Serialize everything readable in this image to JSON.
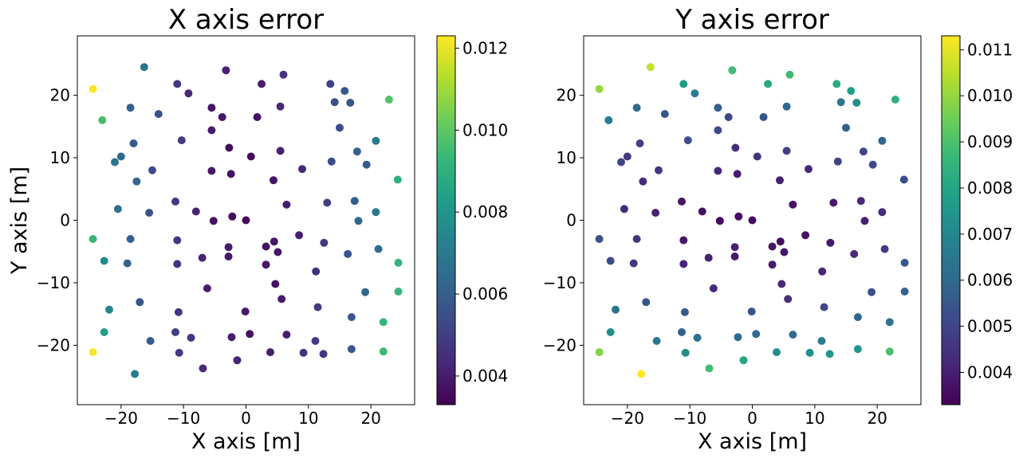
{
  "colorscale": {
    "name": "viridis",
    "stops": [
      "#440154",
      "#482878",
      "#3e4989",
      "#31688e",
      "#26828e",
      "#1f9e89",
      "#35b779",
      "#6ece58",
      "#b5de2b",
      "#fde725"
    ]
  },
  "chart_data": [
    {
      "type": "scatter",
      "title": "X axis error",
      "xlabel": "X axis [m]",
      "ylabel": "Y axis [m]",
      "xlim": [
        -27,
        27
      ],
      "ylim": [
        -29.5,
        29.5
      ],
      "xticks": [
        -20,
        -10,
        0,
        10,
        20
      ],
      "yticks": [
        -20,
        -10,
        0,
        10,
        20
      ],
      "xtick_labels": [
        "−20",
        "−10",
        "0",
        "10",
        "20"
      ],
      "ytick_labels": [
        "−20",
        "−10",
        "0",
        "10",
        "20"
      ],
      "colorbar": {
        "range": [
          0.0033,
          0.0123
        ],
        "ticks": [
          0.004,
          0.006,
          0.008,
          0.01,
          0.012
        ],
        "tick_labels": [
          "0.004",
          "0.006",
          "0.008",
          "0.010",
          "0.012"
        ]
      },
      "points": [
        {
          "x": -24.5,
          "y": 21.0,
          "c": 0.0123
        },
        {
          "x": -23.0,
          "y": 16.0,
          "c": 0.0096
        },
        {
          "x": -16.3,
          "y": 24.5,
          "c": 0.0068
        },
        {
          "x": -18.5,
          "y": 18.0,
          "c": 0.0061
        },
        {
          "x": -14.0,
          "y": 17.0,
          "c": 0.0056
        },
        {
          "x": -11.0,
          "y": 21.8,
          "c": 0.0048
        },
        {
          "x": -9.2,
          "y": 20.3,
          "c": 0.0043
        },
        {
          "x": -3.2,
          "y": 24.0,
          "c": 0.0041
        },
        {
          "x": 2.5,
          "y": 21.8,
          "c": 0.004
        },
        {
          "x": 6.0,
          "y": 23.3,
          "c": 0.0046
        },
        {
          "x": 13.5,
          "y": 21.8,
          "c": 0.005
        },
        {
          "x": 15.8,
          "y": 20.7,
          "c": 0.0058
        },
        {
          "x": 22.9,
          "y": 19.3,
          "c": 0.0098
        },
        {
          "x": 14.2,
          "y": 18.9,
          "c": 0.0055
        },
        {
          "x": 16.7,
          "y": 18.8,
          "c": 0.0057
        },
        {
          "x": 5.5,
          "y": 18.2,
          "c": 0.0043
        },
        {
          "x": -5.5,
          "y": 18.0,
          "c": 0.0038
        },
        {
          "x": -3.8,
          "y": 16.5,
          "c": 0.0038
        },
        {
          "x": 1.8,
          "y": 16.5,
          "c": 0.0037
        },
        {
          "x": -5.5,
          "y": 14.4,
          "c": 0.004
        },
        {
          "x": 15.0,
          "y": 14.8,
          "c": 0.0054
        },
        {
          "x": -18.0,
          "y": 12.3,
          "c": 0.0058
        },
        {
          "x": -10.3,
          "y": 12.8,
          "c": 0.0048
        },
        {
          "x": 20.8,
          "y": 12.7,
          "c": 0.007
        },
        {
          "x": -20.0,
          "y": 10.2,
          "c": 0.0063
        },
        {
          "x": -2.7,
          "y": 11.6,
          "c": 0.0036
        },
        {
          "x": 0.8,
          "y": 10.2,
          "c": 0.0036
        },
        {
          "x": 5.5,
          "y": 11.1,
          "c": 0.0041
        },
        {
          "x": 17.8,
          "y": 11.0,
          "c": 0.006
        },
        {
          "x": -21.0,
          "y": 9.3,
          "c": 0.0068
        },
        {
          "x": 13.7,
          "y": 9.4,
          "c": 0.0054
        },
        {
          "x": 19.3,
          "y": 8.9,
          "c": 0.0059
        },
        {
          "x": -15.0,
          "y": 8.0,
          "c": 0.0054
        },
        {
          "x": -5.5,
          "y": 7.9,
          "c": 0.0039
        },
        {
          "x": -2.4,
          "y": 7.4,
          "c": 0.0037
        },
        {
          "x": 9.0,
          "y": 8.2,
          "c": 0.0043
        },
        {
          "x": 4.4,
          "y": 6.4,
          "c": 0.0038
        },
        {
          "x": -17.5,
          "y": 6.2,
          "c": 0.0063
        },
        {
          "x": 24.3,
          "y": 6.5,
          "c": 0.009
        },
        {
          "x": -11.3,
          "y": 3.0,
          "c": 0.0048
        },
        {
          "x": 17.4,
          "y": 3.1,
          "c": 0.0059
        },
        {
          "x": 6.5,
          "y": 2.5,
          "c": 0.004
        },
        {
          "x": 13.0,
          "y": 2.8,
          "c": 0.005
        },
        {
          "x": -20.5,
          "y": 1.8,
          "c": 0.0066
        },
        {
          "x": -15.5,
          "y": 1.2,
          "c": 0.0056
        },
        {
          "x": -8.0,
          "y": 1.4,
          "c": 0.0042
        },
        {
          "x": 20.8,
          "y": 1.3,
          "c": 0.0069
        },
        {
          "x": -5.2,
          "y": -0.1,
          "c": 0.0037
        },
        {
          "x": -2.2,
          "y": 0.6,
          "c": 0.0035
        },
        {
          "x": 0.0,
          "y": 0.0,
          "c": 0.0035
        },
        {
          "x": 18.0,
          "y": -0.1,
          "c": 0.0063
        },
        {
          "x": -24.5,
          "y": -3.0,
          "c": 0.0093
        },
        {
          "x": -18.5,
          "y": -3.0,
          "c": 0.006
        },
        {
          "x": -11.0,
          "y": -3.2,
          "c": 0.0047
        },
        {
          "x": 4.5,
          "y": -3.4,
          "c": 0.0038
        },
        {
          "x": 8.5,
          "y": -2.4,
          "c": 0.0041
        },
        {
          "x": 12.5,
          "y": -3.6,
          "c": 0.0048
        },
        {
          "x": -2.8,
          "y": -4.3,
          "c": 0.004
        },
        {
          "x": 3.2,
          "y": -4.2,
          "c": 0.0037
        },
        {
          "x": 5.1,
          "y": -5.1,
          "c": 0.0039
        },
        {
          "x": 21.2,
          "y": -4.6,
          "c": 0.0065
        },
        {
          "x": -2.8,
          "y": -5.8,
          "c": 0.0039
        },
        {
          "x": -7.0,
          "y": -6.0,
          "c": 0.0042
        },
        {
          "x": 16.3,
          "y": -5.4,
          "c": 0.0056
        },
        {
          "x": -22.7,
          "y": -6.5,
          "c": 0.0076
        },
        {
          "x": -19.0,
          "y": -6.9,
          "c": 0.0062
        },
        {
          "x": -11.0,
          "y": -7.0,
          "c": 0.0047
        },
        {
          "x": 3.2,
          "y": -7.1,
          "c": 0.0038
        },
        {
          "x": 24.4,
          "y": -6.8,
          "c": 0.0092
        },
        {
          "x": 11.2,
          "y": -8.2,
          "c": 0.0046
        },
        {
          "x": 4.7,
          "y": -10.2,
          "c": 0.0037
        },
        {
          "x": -6.2,
          "y": -10.9,
          "c": 0.004
        },
        {
          "x": 19.1,
          "y": -11.5,
          "c": 0.0063
        },
        {
          "x": 24.4,
          "y": -11.4,
          "c": 0.0092
        },
        {
          "x": -17.0,
          "y": -13.1,
          "c": 0.0057
        },
        {
          "x": 5.7,
          "y": -12.6,
          "c": 0.004
        },
        {
          "x": 11.5,
          "y": -13.9,
          "c": 0.0049
        },
        {
          "x": -21.9,
          "y": -14.3,
          "c": 0.0074
        },
        {
          "x": -10.8,
          "y": -14.7,
          "c": 0.0047
        },
        {
          "x": -0.1,
          "y": -14.6,
          "c": 0.0039
        },
        {
          "x": 16.9,
          "y": -15.5,
          "c": 0.0058
        },
        {
          "x": 22.0,
          "y": -16.3,
          "c": 0.0092
        },
        {
          "x": -22.7,
          "y": -17.9,
          "c": 0.0083
        },
        {
          "x": -11.3,
          "y": -17.9,
          "c": 0.005
        },
        {
          "x": 0.6,
          "y": -18.2,
          "c": 0.0037
        },
        {
          "x": 6.5,
          "y": -18.3,
          "c": 0.004
        },
        {
          "x": -15.3,
          "y": -19.3,
          "c": 0.0059
        },
        {
          "x": -8.8,
          "y": -18.8,
          "c": 0.0047
        },
        {
          "x": -2.3,
          "y": -18.7,
          "c": 0.004
        },
        {
          "x": 11.1,
          "y": -19.3,
          "c": 0.0048
        },
        {
          "x": -24.5,
          "y": -21.1,
          "c": 0.0122
        },
        {
          "x": -10.7,
          "y": -21.2,
          "c": 0.0049
        },
        {
          "x": 3.9,
          "y": -21.1,
          "c": 0.0041
        },
        {
          "x": 9.2,
          "y": -21.2,
          "c": 0.0046
        },
        {
          "x": 12.4,
          "y": -21.4,
          "c": 0.0047
        },
        {
          "x": 16.9,
          "y": -20.6,
          "c": 0.0058
        },
        {
          "x": 22.0,
          "y": -21.0,
          "c": 0.0094
        },
        {
          "x": -1.4,
          "y": -22.4,
          "c": 0.0042
        },
        {
          "x": -6.9,
          "y": -23.7,
          "c": 0.0044
        },
        {
          "x": -17.8,
          "y": -24.6,
          "c": 0.007
        }
      ]
    },
    {
      "type": "scatter",
      "title": "Y axis error",
      "xlabel": "X axis [m]",
      "ylabel": "",
      "xlim": [
        -27,
        27
      ],
      "ylim": [
        -29.5,
        29.5
      ],
      "xticks": [
        -20,
        -10,
        0,
        10,
        20
      ],
      "yticks": [
        -20,
        -10,
        0,
        10,
        20
      ],
      "xtick_labels": [
        "−20",
        "−10",
        "0",
        "10",
        "20"
      ],
      "ytick_labels": [
        "−20",
        "−10",
        "0",
        "10",
        "20"
      ],
      "colorbar": {
        "range": [
          0.0033,
          0.0113
        ],
        "ticks": [
          0.004,
          0.005,
          0.006,
          0.007,
          0.008,
          0.009,
          0.01,
          0.011
        ],
        "tick_labels": [
          "0.004",
          "0.005",
          "0.006",
          "0.007",
          "0.008",
          "0.009",
          "0.010",
          "0.011"
        ]
      },
      "points": [
        {
          "x": -24.5,
          "y": 21.0,
          "c": 0.01
        },
        {
          "x": -23.0,
          "y": 16.0,
          "c": 0.0066
        },
        {
          "x": -16.3,
          "y": 24.5,
          "c": 0.0106
        },
        {
          "x": -18.5,
          "y": 18.0,
          "c": 0.006
        },
        {
          "x": -14.0,
          "y": 17.0,
          "c": 0.0054
        },
        {
          "x": -11.0,
          "y": 21.8,
          "c": 0.0077
        },
        {
          "x": -9.2,
          "y": 20.3,
          "c": 0.0068
        },
        {
          "x": -3.2,
          "y": 24.0,
          "c": 0.0088
        },
        {
          "x": 2.5,
          "y": 21.8,
          "c": 0.0081
        },
        {
          "x": 6.0,
          "y": 23.3,
          "c": 0.0088
        },
        {
          "x": 13.5,
          "y": 21.8,
          "c": 0.0082
        },
        {
          "x": 15.8,
          "y": 20.7,
          "c": 0.0078
        },
        {
          "x": 22.9,
          "y": 19.3,
          "c": 0.0084
        },
        {
          "x": 14.2,
          "y": 18.9,
          "c": 0.0064
        },
        {
          "x": 16.7,
          "y": 18.8,
          "c": 0.0072
        },
        {
          "x": 5.5,
          "y": 18.2,
          "c": 0.006
        },
        {
          "x": -5.5,
          "y": 18.0,
          "c": 0.0057
        },
        {
          "x": -3.8,
          "y": 16.5,
          "c": 0.005
        },
        {
          "x": 1.8,
          "y": 16.5,
          "c": 0.0054
        },
        {
          "x": -5.5,
          "y": 14.4,
          "c": 0.0051
        },
        {
          "x": 15.0,
          "y": 14.8,
          "c": 0.0057
        },
        {
          "x": -18.0,
          "y": 12.3,
          "c": 0.0048
        },
        {
          "x": -10.3,
          "y": 12.8,
          "c": 0.0052
        },
        {
          "x": 20.8,
          "y": 12.7,
          "c": 0.0059
        },
        {
          "x": -20.0,
          "y": 10.2,
          "c": 0.0046
        },
        {
          "x": -2.7,
          "y": 11.6,
          "c": 0.0044
        },
        {
          "x": 0.8,
          "y": 10.2,
          "c": 0.0045
        },
        {
          "x": 5.5,
          "y": 11.1,
          "c": 0.0048
        },
        {
          "x": 17.8,
          "y": 11.0,
          "c": 0.005
        },
        {
          "x": -21.0,
          "y": 9.3,
          "c": 0.005
        },
        {
          "x": 13.7,
          "y": 9.4,
          "c": 0.0049
        },
        {
          "x": 19.3,
          "y": 8.9,
          "c": 0.0051
        },
        {
          "x": -15.0,
          "y": 8.0,
          "c": 0.0046
        },
        {
          "x": -5.5,
          "y": 7.9,
          "c": 0.0042
        },
        {
          "x": -2.4,
          "y": 7.4,
          "c": 0.004
        },
        {
          "x": 9.0,
          "y": 8.2,
          "c": 0.0042
        },
        {
          "x": 4.4,
          "y": 6.4,
          "c": 0.004
        },
        {
          "x": -17.5,
          "y": 6.2,
          "c": 0.0043
        },
        {
          "x": 24.3,
          "y": 6.5,
          "c": 0.0052
        },
        {
          "x": -11.3,
          "y": 3.0,
          "c": 0.0038
        },
        {
          "x": 17.4,
          "y": 3.1,
          "c": 0.0042
        },
        {
          "x": 6.5,
          "y": 2.5,
          "c": 0.0037
        },
        {
          "x": 13.0,
          "y": 2.8,
          "c": 0.0038
        },
        {
          "x": -20.5,
          "y": 1.8,
          "c": 0.0043
        },
        {
          "x": -15.5,
          "y": 1.2,
          "c": 0.004
        },
        {
          "x": -8.0,
          "y": 1.4,
          "c": 0.0037
        },
        {
          "x": 20.8,
          "y": 1.3,
          "c": 0.0043
        },
        {
          "x": -5.2,
          "y": -0.1,
          "c": 0.0035
        },
        {
          "x": -2.2,
          "y": 0.6,
          "c": 0.0035
        },
        {
          "x": 0.0,
          "y": 0.0,
          "c": 0.0035
        },
        {
          "x": 18.0,
          "y": -0.1,
          "c": 0.004
        },
        {
          "x": -24.5,
          "y": -3.0,
          "c": 0.0053
        },
        {
          "x": -18.5,
          "y": -3.0,
          "c": 0.0045
        },
        {
          "x": -11.0,
          "y": -3.2,
          "c": 0.0038
        },
        {
          "x": 4.5,
          "y": -3.4,
          "c": 0.0036
        },
        {
          "x": 8.5,
          "y": -2.4,
          "c": 0.0037
        },
        {
          "x": 12.5,
          "y": -3.6,
          "c": 0.0038
        },
        {
          "x": -2.8,
          "y": -4.3,
          "c": 0.004
        },
        {
          "x": 3.2,
          "y": -4.2,
          "c": 0.0038
        },
        {
          "x": 5.1,
          "y": -5.1,
          "c": 0.0038
        },
        {
          "x": 21.2,
          "y": -4.6,
          "c": 0.0047
        },
        {
          "x": -2.8,
          "y": -5.8,
          "c": 0.0039
        },
        {
          "x": -7.0,
          "y": -6.0,
          "c": 0.004
        },
        {
          "x": 16.3,
          "y": -5.4,
          "c": 0.0042
        },
        {
          "x": -22.7,
          "y": -6.5,
          "c": 0.0052
        },
        {
          "x": -19.0,
          "y": -6.9,
          "c": 0.0046
        },
        {
          "x": -11.0,
          "y": -7.0,
          "c": 0.0041
        },
        {
          "x": 3.2,
          "y": -7.1,
          "c": 0.0039
        },
        {
          "x": 24.4,
          "y": -6.8,
          "c": 0.0055
        },
        {
          "x": 11.2,
          "y": -8.2,
          "c": 0.0041
        },
        {
          "x": 4.7,
          "y": -10.2,
          "c": 0.0042
        },
        {
          "x": -6.2,
          "y": -10.9,
          "c": 0.0042
        },
        {
          "x": 19.1,
          "y": -11.5,
          "c": 0.0053
        },
        {
          "x": 24.4,
          "y": -11.4,
          "c": 0.0058
        },
        {
          "x": -17.0,
          "y": -13.1,
          "c": 0.0054
        },
        {
          "x": 5.7,
          "y": -12.6,
          "c": 0.0044
        },
        {
          "x": 11.5,
          "y": -13.9,
          "c": 0.005
        },
        {
          "x": -21.9,
          "y": -14.3,
          "c": 0.0064
        },
        {
          "x": -10.8,
          "y": -14.7,
          "c": 0.0055
        },
        {
          "x": -0.1,
          "y": -14.6,
          "c": 0.0053
        },
        {
          "x": 16.9,
          "y": -15.5,
          "c": 0.0059
        },
        {
          "x": 22.0,
          "y": -16.3,
          "c": 0.0063
        },
        {
          "x": -22.7,
          "y": -17.9,
          "c": 0.0072
        },
        {
          "x": -11.3,
          "y": -17.9,
          "c": 0.0058
        },
        {
          "x": 0.6,
          "y": -18.2,
          "c": 0.006
        },
        {
          "x": 6.5,
          "y": -18.3,
          "c": 0.0061
        },
        {
          "x": -15.3,
          "y": -19.3,
          "c": 0.0065
        },
        {
          "x": -8.8,
          "y": -18.8,
          "c": 0.0062
        },
        {
          "x": -2.3,
          "y": -18.7,
          "c": 0.006
        },
        {
          "x": 11.1,
          "y": -19.3,
          "c": 0.0066
        },
        {
          "x": -24.5,
          "y": -21.1,
          "c": 0.0098
        },
        {
          "x": -10.7,
          "y": -21.2,
          "c": 0.0072
        },
        {
          "x": 3.9,
          "y": -21.1,
          "c": 0.0072
        },
        {
          "x": 9.2,
          "y": -21.2,
          "c": 0.0073
        },
        {
          "x": 12.4,
          "y": -21.4,
          "c": 0.0076
        },
        {
          "x": 16.9,
          "y": -20.6,
          "c": 0.0075
        },
        {
          "x": 22.0,
          "y": -21.0,
          "c": 0.009
        },
        {
          "x": -1.4,
          "y": -22.4,
          "c": 0.008
        },
        {
          "x": -6.9,
          "y": -23.7,
          "c": 0.0088
        },
        {
          "x": -17.8,
          "y": -24.6,
          "c": 0.0113
        }
      ]
    }
  ]
}
